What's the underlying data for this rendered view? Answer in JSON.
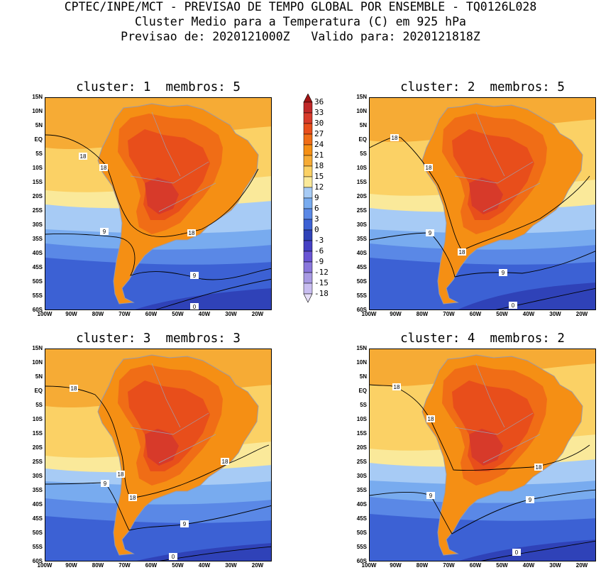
{
  "header": {
    "line1": "CPTEC/INPE/MCT - PREVISAO DE TEMPO GLOBAL POR ENSEMBLE - TQ0126L028",
    "line2": "Cluster Medio para a Temperatura (C) em 925 hPa",
    "line3": "Previsao de: 2020121000Z   Valido para: 2020121818Z"
  },
  "panels": [
    {
      "title": "cluster: 1  membros: 5"
    },
    {
      "title": "cluster: 2  membros: 5"
    },
    {
      "title": "cluster: 3  membros: 3"
    },
    {
      "title": "cluster: 4  membros: 2"
    }
  ],
  "lat_labels": [
    "15N",
    "10N",
    "5N",
    "EQ",
    "5S",
    "10S",
    "15S",
    "20S",
    "25S",
    "30S",
    "35S",
    "40S",
    "45S",
    "50S",
    "55S",
    "60S"
  ],
  "lon_labels": [
    "100W",
    "90W",
    "80W",
    "70W",
    "60W",
    "50W",
    "40W",
    "30W",
    "20W"
  ],
  "colorbar": {
    "labels": [
      "36",
      "33",
      "30",
      "27",
      "24",
      "21",
      "18",
      "15",
      "12",
      "9",
      "6",
      "3",
      "0",
      "-3",
      "-6",
      "-9",
      "-12",
      "-15",
      "-18"
    ],
    "colors": [
      "#a11414",
      "#c02828",
      "#d73a2a",
      "#e84e1b",
      "#f06d16",
      "#f58f14",
      "#f6ab35",
      "#fbd165",
      "#fae99a",
      "#a7cbf5",
      "#78abef",
      "#5a88e6",
      "#3c61d4",
      "#2f42b8",
      "#4540c4",
      "#6a55d4",
      "#8a77dc",
      "#a89ae3",
      "#c8bdf0",
      "#e6def7"
    ]
  },
  "contour_labels": {
    "c18": "18",
    "c9": "9",
    "c0": "0"
  }
}
